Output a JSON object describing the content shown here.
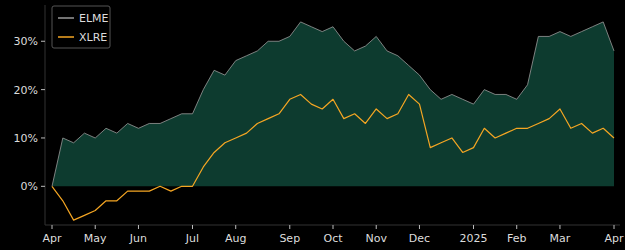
{
  "chart_data": {
    "type": "line",
    "categories": [
      "Apr",
      null,
      null,
      null,
      "May",
      null,
      null,
      null,
      "Jun",
      null,
      null,
      null,
      null,
      "Jul",
      null,
      null,
      null,
      "Aug",
      null,
      null,
      null,
      null,
      "Sep",
      null,
      null,
      null,
      "Oct",
      null,
      null,
      null,
      "Nov",
      null,
      null,
      null,
      "Dec",
      null,
      null,
      null,
      null,
      "2025",
      null,
      null,
      null,
      "Feb",
      null,
      null,
      null,
      "Mar",
      null,
      null,
      null,
      null,
      "Apr"
    ],
    "series": [
      {
        "name": "ELME",
        "type": "area",
        "color": "#9a9a9a",
        "values": [
          0,
          10,
          9,
          11,
          10,
          12,
          11,
          13,
          12,
          13,
          13,
          14,
          15,
          15,
          20,
          24,
          23,
          26,
          27,
          28,
          30,
          30,
          31,
          34,
          33,
          32,
          33,
          30,
          28,
          29,
          31,
          28,
          27,
          25,
          23,
          20,
          18,
          19,
          18,
          17,
          20,
          19,
          19,
          18,
          21,
          31,
          31,
          32,
          31,
          32,
          33,
          34,
          28
        ]
      },
      {
        "name": "XLRE",
        "type": "line",
        "color": "#f5a623",
        "values": [
          0,
          -3,
          -7,
          -6,
          -5,
          -3,
          -3,
          -1,
          -1,
          -1,
          0,
          -1,
          0,
          0,
          4,
          7,
          9,
          10,
          11,
          13,
          14,
          15,
          18,
          19,
          17,
          16,
          18,
          14,
          15,
          13,
          16,
          14,
          15,
          19,
          17,
          8,
          9,
          10,
          7,
          8,
          12,
          10,
          11,
          12,
          12,
          13,
          14,
          16,
          12,
          13,
          11,
          12,
          10
        ]
      }
    ],
    "ylim": [
      -8,
      37.5
    ],
    "yticks": [
      {
        "value": 0,
        "label": "0%"
      },
      {
        "value": 10,
        "label": "10%"
      },
      {
        "value": 20,
        "label": "20%"
      },
      {
        "value": 30,
        "label": "30%"
      }
    ],
    "grid": false,
    "legend": "upper left"
  }
}
